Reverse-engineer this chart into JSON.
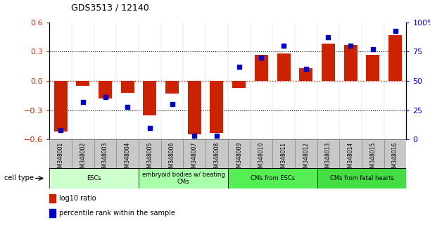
{
  "title": "GDS3513 / 12140",
  "samples": [
    "GSM348001",
    "GSM348002",
    "GSM348003",
    "GSM348004",
    "GSM348005",
    "GSM348006",
    "GSM348007",
    "GSM348008",
    "GSM348009",
    "GSM348010",
    "GSM348011",
    "GSM348012",
    "GSM348013",
    "GSM348014",
    "GSM348015",
    "GSM348016"
  ],
  "log10_ratio": [
    -0.52,
    -0.05,
    -0.18,
    -0.12,
    -0.35,
    -0.13,
    -0.55,
    -0.53,
    -0.07,
    0.27,
    0.28,
    0.13,
    0.38,
    0.37,
    0.27,
    0.47
  ],
  "percentile_rank": [
    8,
    32,
    36,
    28,
    10,
    30,
    3,
    3,
    62,
    70,
    80,
    60,
    87,
    80,
    77,
    93
  ],
  "bar_color": "#cc2200",
  "dot_color": "#0000cc",
  "ylim_left": [
    -0.6,
    0.6
  ],
  "ylim_right": [
    0,
    100
  ],
  "yticks_left": [
    -0.6,
    -0.3,
    0,
    0.3,
    0.6
  ],
  "yticks_right": [
    0,
    25,
    50,
    75,
    100
  ],
  "ytick_labels_right": [
    "0",
    "25",
    "50",
    "75",
    "100%"
  ],
  "groups": [
    {
      "label": "ESCs",
      "start": 0,
      "end": 3,
      "color": "#ccffcc"
    },
    {
      "label": "embryoid bodies w/ beating\nCMs",
      "start": 4,
      "end": 7,
      "color": "#aaffaa"
    },
    {
      "label": "CMs from ESCs",
      "start": 8,
      "end": 11,
      "color": "#55ee55"
    },
    {
      "label": "CMs from fetal hearts",
      "start": 12,
      "end": 15,
      "color": "#44dd44"
    }
  ],
  "cell_type_label": "cell type",
  "legend_bar_label": "log10 ratio",
  "legend_dot_label": "percentile rank within the sample",
  "sample_box_color": "#c8c8c8",
  "sample_box_edge": "#888888"
}
